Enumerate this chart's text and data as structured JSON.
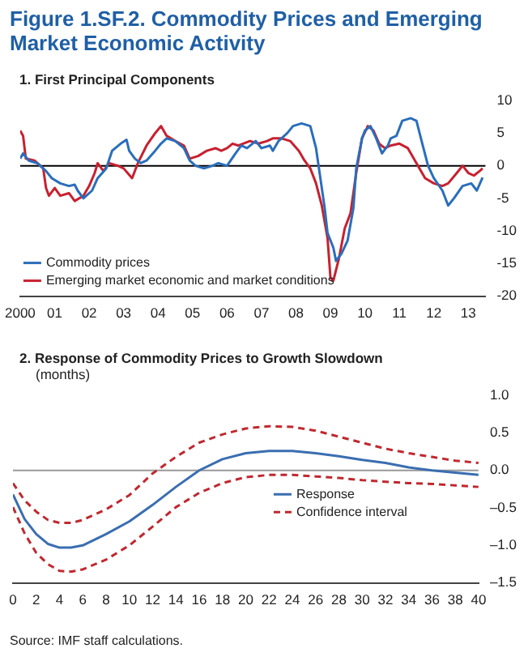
{
  "chart_data": [
    {
      "type": "line",
      "title": "Figure 1.SF.2.  Commodity Prices and Emerging Market Economic Activity",
      "subtitle": "1. First Principal Components",
      "xlim": [
        "2000-01",
        "2013-07"
      ],
      "xticks": [
        {
          "value": "2000",
          "label": "2000"
        },
        {
          "value": "2001",
          "label": "01"
        },
        {
          "value": "2002",
          "label": "02"
        },
        {
          "value": "2003",
          "label": "03"
        },
        {
          "value": "2004",
          "label": "04"
        },
        {
          "value": "2005",
          "label": "05"
        },
        {
          "value": "2006",
          "label": "06"
        },
        {
          "value": "2007",
          "label": "07"
        },
        {
          "value": "2008",
          "label": "08"
        },
        {
          "value": "2009",
          "label": "09"
        },
        {
          "value": "2010",
          "label": "10"
        },
        {
          "value": "2011",
          "label": "11"
        },
        {
          "value": "2012",
          "label": "12"
        },
        {
          "value": "2013",
          "label": "13"
        }
      ],
      "ylim": [
        -20,
        10
      ],
      "yticks": [
        10,
        5,
        0,
        -5,
        -10,
        -15,
        -20
      ],
      "grid": false,
      "legend": "bottom left",
      "line_style": "solid",
      "marker": "none",
      "ref_lines": [
        {
          "axis": "y",
          "value": 0,
          "color": "#000000"
        }
      ],
      "series": [
        {
          "name": "Commodity prices",
          "color": "#2a6ebb",
          "x": [
            "2000-01",
            "2000-02",
            "2000-04",
            "2000-07",
            "2000-10",
            "2000-12",
            "2001-03",
            "2001-06",
            "2001-08",
            "2001-09",
            "2001-11",
            "2002-02",
            "2002-04",
            "2002-07",
            "2002-09",
            "2002-12",
            "2003-02",
            "2003-03",
            "2003-05",
            "2003-07",
            "2003-09",
            "2003-12",
            "2004-02",
            "2004-04",
            "2004-07",
            "2004-10",
            "2004-12",
            "2005-02",
            "2005-05",
            "2005-08",
            "2005-10",
            "2006-01",
            "2006-04",
            "2006-06",
            "2006-08",
            "2006-11",
            "2007-01",
            "2007-04",
            "2007-05",
            "2007-07",
            "2007-10",
            "2007-12",
            "2008-03",
            "2008-06",
            "2008-08",
            "2008-09",
            "2008-11",
            "2008-12",
            "2009-02",
            "2009-03",
            "2009-05",
            "2009-07",
            "2009-09",
            "2009-10",
            "2009-12",
            "2010-01",
            "2010-03",
            "2010-05",
            "2010-07",
            "2010-09",
            "2010-10",
            "2010-12",
            "2011-02",
            "2011-05",
            "2011-07",
            "2011-09",
            "2011-11",
            "2012-01",
            "2012-04",
            "2012-06",
            "2012-08",
            "2012-11",
            "2013-02",
            "2013-04",
            "2013-06"
          ],
          "values": [
            1.1,
            1.9,
            0.8,
            0.4,
            -0.8,
            -1.9,
            -2.7,
            -3.1,
            -2.9,
            -3.8,
            -5,
            -3.8,
            -1.9,
            -0.4,
            2.3,
            3.4,
            4,
            2.3,
            1.1,
            0.4,
            0.8,
            2.3,
            3.4,
            4.2,
            3.8,
            2.7,
            0.8,
            0,
            -0.4,
            0,
            0.4,
            0,
            1.9,
            3.1,
            2.7,
            3.8,
            2.7,
            3.1,
            2.3,
            3.8,
            5,
            6.1,
            6.5,
            6.1,
            2.7,
            -0.4,
            -6.5,
            -10.3,
            -12.6,
            -14.6,
            -13.4,
            -11.5,
            -6.5,
            -0.4,
            4.2,
            5.4,
            6.1,
            4.2,
            1.9,
            3.1,
            4.2,
            4.6,
            6.9,
            7.3,
            6.9,
            3.4,
            0,
            -1.9,
            -3.8,
            -6.1,
            -5,
            -3.1,
            -2.7,
            -3.8,
            -1.8
          ]
        },
        {
          "name": "Emerging market economic and market conditions",
          "color": "#c8202f",
          "x": [
            "2000-01",
            "2000-02",
            "2000-03",
            "2000-06",
            "2000-09",
            "2000-10",
            "2000-11",
            "2001-01",
            "2001-03",
            "2001-06",
            "2001-08",
            "2001-11",
            "2002-01",
            "2002-03",
            "2002-04",
            "2002-06",
            "2002-08",
            "2002-11",
            "2003-01",
            "2003-04",
            "2003-06",
            "2003-09",
            "2003-12",
            "2004-02",
            "2004-04",
            "2004-07",
            "2004-10",
            "2004-12",
            "2005-03",
            "2005-06",
            "2005-09",
            "2005-11",
            "2006-01",
            "2006-03",
            "2006-05",
            "2006-09",
            "2006-12",
            "2007-03",
            "2007-05",
            "2007-08",
            "2007-11",
            "2008-02",
            "2008-04",
            "2008-06",
            "2008-08",
            "2008-10",
            "2008-12",
            "2009-01",
            "2009-02",
            "2009-04",
            "2009-06",
            "2009-08",
            "2009-10",
            "2009-12",
            "2010-02",
            "2010-04",
            "2010-06",
            "2010-08",
            "2010-10",
            "2011-01",
            "2011-04",
            "2011-07",
            "2011-10",
            "2012-01",
            "2012-04",
            "2012-06",
            "2012-09",
            "2012-11",
            "2013-01",
            "2013-03",
            "2013-05",
            "2013-06"
          ],
          "values": [
            5.4,
            4.6,
            1.1,
            0.8,
            -0.4,
            -3.4,
            -4.6,
            -3.4,
            -4.6,
            -4.2,
            -5.4,
            -4.6,
            -3.1,
            -1.1,
            0.4,
            -0.8,
            0.4,
            0,
            -0.4,
            -1.9,
            0.4,
            3.1,
            5,
            6.1,
            4.6,
            3.8,
            3.1,
            1.1,
            1.5,
            2.3,
            2.7,
            2.3,
            2.7,
            3.4,
            3.1,
            3.8,
            3.4,
            3.8,
            4.2,
            4.2,
            3.8,
            2.3,
            0.8,
            -0.4,
            -2.7,
            -6.1,
            -11.1,
            -17.2,
            -17.6,
            -14.2,
            -9.6,
            -7.3,
            -1.1,
            4.2,
            6.1,
            5.4,
            3.4,
            2.7,
            3.1,
            3.4,
            2.7,
            0.4,
            -1.9,
            -2.7,
            -3.1,
            -2.7,
            -1.1,
            0,
            -1.1,
            -1.5,
            -0.8,
            -0.4
          ]
        }
      ]
    },
    {
      "type": "line",
      "title": "2. Response of Commodity Prices to Growth Slowdown",
      "subtitle": "(months)",
      "xlim": [
        0,
        40
      ],
      "xticks": [
        0,
        2,
        4,
        6,
        8,
        10,
        12,
        14,
        16,
        18,
        20,
        22,
        24,
        26,
        28,
        30,
        32,
        34,
        36,
        38,
        40
      ],
      "ylim": [
        -1.5,
        1.0
      ],
      "yticks": [
        {
          "value": 1.0,
          "label": "1.0"
        },
        {
          "value": 0.5,
          "label": "0.5"
        },
        {
          "value": 0,
          "label": "0.0"
        },
        {
          "value": -0.5,
          "label": "–0.5"
        },
        {
          "value": -1.0,
          "label": "–1.0"
        },
        {
          "value": -1.5,
          "label": "–1.5"
        }
      ],
      "grid": false,
      "legend": "right",
      "marker": "none",
      "ref_lines": [
        {
          "axis": "y",
          "value": 0,
          "color": "#999999"
        }
      ],
      "annotations": [
        "Source: IMF staff calculations."
      ],
      "series": [
        {
          "name": "Response",
          "color": "#3a6eb0",
          "line_style": "solid",
          "x": [
            0,
            1,
            2,
            3,
            4,
            5,
            6,
            8,
            10,
            12,
            14,
            16,
            18,
            20,
            22,
            24,
            26,
            28,
            30,
            32,
            34,
            36,
            38,
            40
          ],
          "values": [
            -0.32,
            -0.65,
            -0.85,
            -0.98,
            -1.03,
            -1.03,
            -1.0,
            -0.85,
            -0.68,
            -0.46,
            -0.22,
            0,
            0.15,
            0.23,
            0.26,
            0.26,
            0.23,
            0.19,
            0.14,
            0.1,
            0.04,
            0,
            -0.03,
            -0.06
          ]
        },
        {
          "name": "Confidence interval",
          "color": "#c0282f",
          "line_style": "dashed",
          "x": [
            0,
            1,
            2,
            3,
            4,
            5,
            6,
            8,
            10,
            12,
            14,
            16,
            18,
            20,
            22,
            24,
            26,
            28,
            30,
            32,
            34,
            36,
            38,
            40
          ],
          "values": [
            -0.17,
            -0.4,
            -0.55,
            -0.66,
            -0.7,
            -0.7,
            -0.66,
            -0.52,
            -0.33,
            -0.04,
            0.18,
            0.37,
            0.48,
            0.56,
            0.59,
            0.58,
            0.53,
            0.45,
            0.37,
            0.29,
            0.23,
            0.18,
            0.13,
            0.1
          ]
        },
        {
          "color": "#c0282f",
          "line_style": "dashed",
          "x": [
            0,
            1,
            2,
            3,
            4,
            5,
            6,
            8,
            10,
            12,
            14,
            16,
            18,
            20,
            22,
            24,
            26,
            28,
            30,
            32,
            34,
            36,
            38,
            40
          ],
          "values": [
            -0.49,
            -0.84,
            -1.1,
            -1.25,
            -1.34,
            -1.35,
            -1.32,
            -1.19,
            -1.0,
            -0.75,
            -0.49,
            -0.3,
            -0.17,
            -0.09,
            -0.06,
            -0.06,
            -0.08,
            -0.1,
            -0.13,
            -0.15,
            -0.17,
            -0.18,
            -0.2,
            -0.22
          ]
        }
      ]
    }
  ]
}
